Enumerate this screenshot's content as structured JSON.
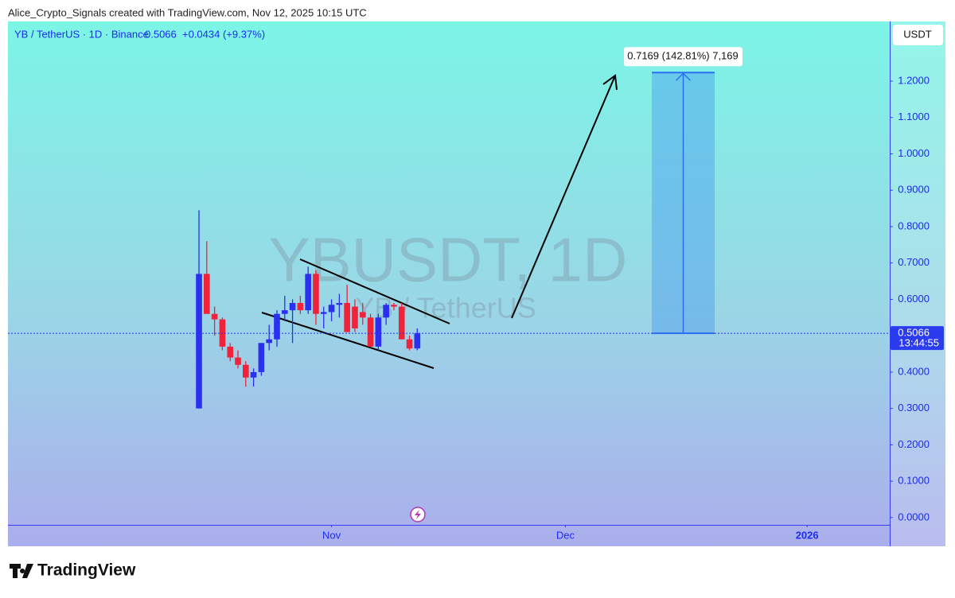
{
  "header": {
    "credit": "Alice_Crypto_Signals created with TradingView.com, Nov 12, 2025 10:15 UTC"
  },
  "legend": {
    "symbol": "YB / TetherUS · 1D · Binance",
    "change": "+0.0434 (+9.37%)"
  },
  "watermark": {
    "ticker": "YBUSDT, 1D",
    "name": "YB / TetherUS"
  },
  "currency_button": "USDT",
  "countdown": "13:44:55",
  "measure": {
    "value": 0.7169,
    "label": "0.7169 (142.81%) 7,169"
  },
  "logo": "TradingView",
  "chart_data": {
    "type": "candlestick",
    "price": 0.5066,
    "up_color": "#2b2ff0",
    "down_color": "#f0233b",
    "open": [
      0.3,
      0.67,
      0.56,
      0.545,
      0.47,
      0.44,
      0.42,
      0.385,
      0.4,
      0.48,
      0.49,
      0.56,
      0.57,
      0.59,
      0.57,
      0.67,
      0.56,
      0.565,
      0.585,
      0.59,
      0.58,
      0.565,
      0.55,
      0.47,
      0.55,
      0.585,
      0.58,
      0.49,
      0.465
    ],
    "high": [
      0.845,
      0.76,
      0.58,
      0.55,
      0.48,
      0.46,
      0.43,
      0.41,
      0.48,
      0.53,
      0.57,
      0.61,
      0.6,
      0.61,
      0.69,
      0.68,
      0.58,
      0.6,
      0.615,
      0.64,
      0.6,
      0.59,
      0.56,
      0.56,
      0.59,
      0.59,
      0.59,
      0.5,
      0.52
    ],
    "low": [
      0.3,
      0.56,
      0.5,
      0.46,
      0.43,
      0.41,
      0.36,
      0.36,
      0.39,
      0.46,
      0.47,
      0.54,
      0.48,
      0.56,
      0.56,
      0.53,
      0.52,
      0.54,
      0.55,
      0.51,
      0.51,
      0.53,
      0.47,
      0.46,
      0.53,
      0.57,
      0.49,
      0.46,
      0.46
    ],
    "close": [
      0.67,
      0.56,
      0.545,
      0.47,
      0.44,
      0.42,
      0.385,
      0.4,
      0.48,
      0.49,
      0.56,
      0.57,
      0.59,
      0.57,
      0.67,
      0.56,
      0.565,
      0.585,
      0.59,
      0.51,
      0.52,
      0.55,
      0.47,
      0.55,
      0.585,
      0.58,
      0.49,
      0.465,
      0.5066
    ],
    "xlim": [
      -24.5,
      88.6
    ],
    "xticks": [
      {
        "value": 17,
        "label": "Nov"
      },
      {
        "value": 47,
        "label": "Dec"
      },
      {
        "value": 78,
        "label": "2026"
      }
    ],
    "ylim": [
      -0.02,
      1.364
    ],
    "yticks": [
      {
        "value": 0,
        "label": "0.0000"
      },
      {
        "value": 0.1,
        "label": "0.1000"
      },
      {
        "value": 0.2,
        "label": "0.2000"
      },
      {
        "value": 0.3,
        "label": "0.3000"
      },
      {
        "value": 0.4,
        "label": "0.4000"
      },
      {
        "value": 0.5,
        "label": "0.5000"
      },
      {
        "value": 0.6,
        "label": "0.6000"
      },
      {
        "value": 0.7,
        "label": "0.7000"
      },
      {
        "value": 0.8,
        "label": "0.8000"
      },
      {
        "value": 0.9,
        "label": "0.9000"
      },
      {
        "value": 1,
        "label": "1.0000"
      },
      {
        "value": 1.1,
        "label": "1.1000"
      },
      {
        "value": 1.2,
        "label": "1.2000"
      }
    ]
  }
}
